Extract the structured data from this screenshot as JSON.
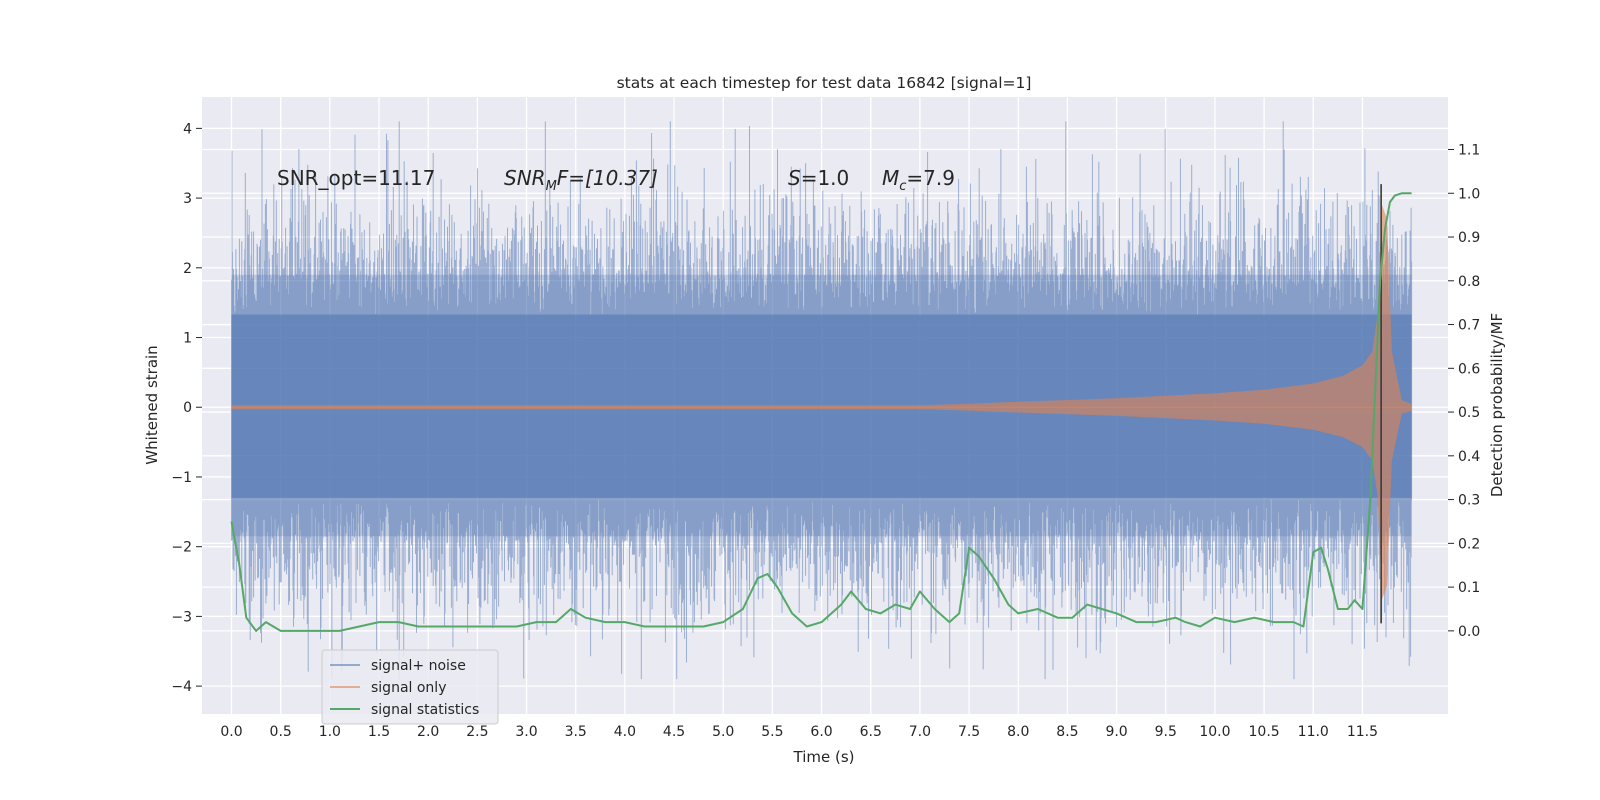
{
  "chart_data": {
    "type": "line",
    "title": "stats at each timestep for test data 16842 [signal=1]",
    "xlabel": "Time (s)",
    "ylabel_left": "Whitened strain",
    "ylabel_right": "Detection probability/MF",
    "x_range": [
      -0.3,
      12.37
    ],
    "y_left_range": [
      -4.4,
      4.45
    ],
    "y_right_range": [
      -0.19,
      1.22
    ],
    "x_ticks": [
      "0.0",
      "0.5",
      "1.0",
      "1.5",
      "2.0",
      "2.5",
      "3.0",
      "3.5",
      "4.0",
      "4.5",
      "5.0",
      "5.5",
      "6.0",
      "6.5",
      "7.0",
      "7.5",
      "8.0",
      "8.5",
      "9.0",
      "9.5",
      "10.0",
      "10.5",
      "11.0",
      "11.5"
    ],
    "y_left_ticks": [
      "4",
      "3",
      "2",
      "1",
      "0",
      "−1",
      "−2",
      "−3",
      "−4"
    ],
    "y_right_ticks": [
      "1.1",
      "1.0",
      "0.9",
      "0.8",
      "0.7",
      "0.6",
      "0.5",
      "0.4",
      "0.3",
      "0.2",
      "0.1",
      "0.0"
    ],
    "grid": true,
    "legend_position": "lower-left",
    "colors": {
      "background": "#eaeaf2",
      "grid": "#ffffff",
      "signal_noise": "#4c72b0",
      "signal_only": "#dd8452",
      "statistics": "#55a868"
    },
    "annotations": {
      "snr_opt": "SNR_opt=11.17",
      "snr_mf_main": "SNR",
      "snr_mf_sub": "M",
      "snr_mf_rest": "F=[10.37]",
      "s_main": "S",
      "s_rest": "=1.0",
      "mc_main": "M",
      "mc_sub": "c",
      "mc_rest": "=7.9"
    },
    "series": [
      {
        "name": "signal+ noise",
        "kind": "noise_band",
        "x_start": 0.0,
        "x_end": 12.0,
        "core_sigma": 1.0,
        "peak_max": 4.1,
        "peak_min": -3.9
      },
      {
        "name": "signal only",
        "kind": "chirp_envelope",
        "x": [
          0.0,
          7.0,
          7.5,
          8.0,
          9.0,
          10.0,
          10.5,
          11.0,
          11.3,
          11.5,
          11.6,
          11.65,
          11.7,
          11.75,
          11.8,
          11.9,
          12.0
        ],
        "amplitude": [
          0.03,
          0.03,
          0.05,
          0.08,
          0.13,
          0.2,
          0.25,
          0.34,
          0.45,
          0.6,
          0.8,
          1.3,
          2.9,
          2.7,
          0.8,
          0.1,
          0.05
        ]
      },
      {
        "name": "signal statistics",
        "kind": "line",
        "x": [
          0.0,
          0.08,
          0.15,
          0.25,
          0.35,
          0.5,
          0.7,
          0.9,
          1.1,
          1.3,
          1.5,
          1.7,
          1.9,
          2.1,
          2.3,
          2.5,
          2.7,
          2.9,
          3.1,
          3.3,
          3.45,
          3.6,
          3.8,
          4.0,
          4.2,
          4.4,
          4.6,
          4.8,
          5.0,
          5.2,
          5.35,
          5.45,
          5.55,
          5.7,
          5.85,
          6.0,
          6.2,
          6.3,
          6.45,
          6.6,
          6.75,
          6.9,
          7.0,
          7.15,
          7.3,
          7.4,
          7.5,
          7.6,
          7.75,
          7.9,
          8.0,
          8.2,
          8.4,
          8.55,
          8.7,
          8.85,
          9.0,
          9.2,
          9.4,
          9.6,
          9.7,
          9.85,
          10.0,
          10.2,
          10.4,
          10.6,
          10.8,
          10.9,
          11.0,
          11.08,
          11.15,
          11.25,
          11.35,
          11.42,
          11.5,
          11.58,
          11.63,
          11.68,
          11.73,
          11.78,
          11.83,
          11.9,
          12.0
        ],
        "y": [
          0.25,
          0.15,
          0.03,
          0.0,
          0.02,
          0.0,
          0.0,
          0.0,
          0.0,
          0.01,
          0.02,
          0.02,
          0.01,
          0.01,
          0.01,
          0.01,
          0.01,
          0.01,
          0.02,
          0.02,
          0.05,
          0.03,
          0.02,
          0.02,
          0.01,
          0.01,
          0.01,
          0.01,
          0.02,
          0.05,
          0.12,
          0.13,
          0.1,
          0.04,
          0.01,
          0.02,
          0.06,
          0.09,
          0.05,
          0.04,
          0.06,
          0.05,
          0.09,
          0.05,
          0.02,
          0.04,
          0.19,
          0.17,
          0.12,
          0.06,
          0.04,
          0.05,
          0.03,
          0.03,
          0.06,
          0.05,
          0.04,
          0.02,
          0.02,
          0.03,
          0.02,
          0.01,
          0.03,
          0.02,
          0.03,
          0.02,
          0.02,
          0.01,
          0.18,
          0.19,
          0.14,
          0.05,
          0.05,
          0.07,
          0.05,
          0.3,
          0.55,
          0.8,
          0.92,
          0.98,
          0.995,
          1.0,
          1.0
        ]
      }
    ]
  }
}
